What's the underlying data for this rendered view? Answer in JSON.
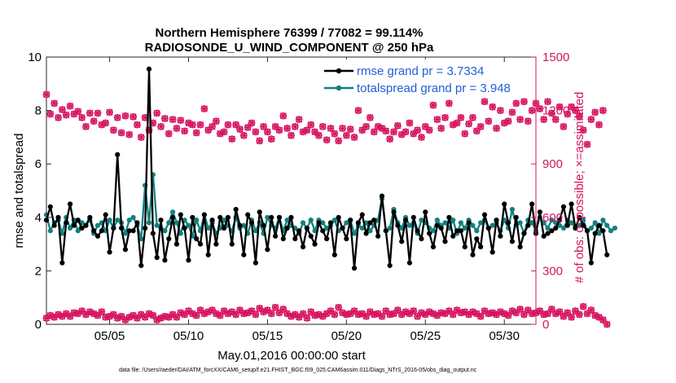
{
  "colors": {
    "rmse": "#000000",
    "spread": "#118080",
    "obs": "#d6135f",
    "legend_text": "#1f5fd6",
    "axis_left": "#000000",
    "axis_right": "#d6135f"
  },
  "chart_data": {
    "type": "line",
    "title": "Northern Hemisphere 76399 / 77082 = 99.114%",
    "subtitle": "RADIOSONDE_U_WIND_COMPONENT @ 250 hPa",
    "xlabel": "May.01,2016 00:00:00 start",
    "ylabel_left": "rmse and totalspread",
    "ylabel_right": "# of obs: o=possible; ×=assimilated",
    "footer": "data file: /Users/raeder/DAI/ATM_forcXX/CAM6_setup/f.e21.FHIST_BGC.f09_025.CAM6assim.011/Diags_NTrS_2016-05/obs_diag_output.nc",
    "xlim": [
      1,
      32
    ],
    "ylim_left": [
      0,
      10
    ],
    "ylim_right": [
      0,
      1500
    ],
    "x_ticks": [
      5,
      10,
      15,
      20,
      25,
      30
    ],
    "x_tick_labels": [
      "05/05",
      "05/10",
      "05/15",
      "05/20",
      "05/25",
      "05/30"
    ],
    "y_left_ticks": [
      "0",
      "2",
      "4",
      "6",
      "8",
      "10"
    ],
    "y_right_ticks": [
      "0",
      "300",
      "600",
      "900",
      "1200",
      "1500"
    ],
    "grid": false,
    "legend_position": "top-right",
    "x_start": 1.0,
    "x_step": 0.25,
    "series": [
      {
        "name": "rmse grand pr = 3.7334",
        "axis": "left",
        "values": [
          3.9,
          4.4,
          3.7,
          4.0,
          2.3,
          3.8,
          4.5,
          3.7,
          3.9,
          3.6,
          3.7,
          4.0,
          3.5,
          3.3,
          3.5,
          4.1,
          2.7,
          3.6,
          6.35,
          3.6,
          2.8,
          3.5,
          3.5,
          3.8,
          2.2,
          3.6,
          9.55,
          3.4,
          2.5,
          3.9,
          2.4,
          3.2,
          4.0,
          3.0,
          4.1,
          3.6,
          2.4,
          4.0,
          3.2,
          3.0,
          4.1,
          2.6,
          3.9,
          3.0,
          4.0,
          3.6,
          4.0,
          3.0,
          4.3,
          3.7,
          2.6,
          4.1,
          3.8,
          2.3,
          4.2,
          3.7,
          2.8,
          4.0,
          3.3,
          4.0,
          3.2,
          3.6,
          4.0,
          3.2,
          3.5,
          2.9,
          3.6,
          3.3,
          3.0,
          3.8,
          3.5,
          3.2,
          3.8,
          2.6,
          4.0,
          3.6,
          3.2,
          3.9,
          2.1,
          3.8,
          4.1,
          3.4,
          3.8,
          3.9,
          3.3,
          4.8,
          3.5,
          2.2,
          4.2,
          3.7,
          3.1,
          3.9,
          2.3,
          4.0,
          3.5,
          3.2,
          4.2,
          3.4,
          2.9,
          3.7,
          3.6,
          3.1,
          4.0,
          3.3,
          3.5,
          3.5,
          2.9,
          3.8,
          2.6,
          3.2,
          2.9,
          4.1,
          3.6,
          2.7,
          3.9,
          3.3,
          4.5,
          3.8,
          3.1,
          4.0,
          2.9,
          3.4,
          3.7,
          4.5,
          3.4,
          4.2,
          3.3,
          3.4,
          3.5,
          3.6,
          3.9,
          4.4,
          3.7,
          4.5,
          3.6,
          4.0,
          3.7,
          3.5,
          2.3,
          3.4,
          3.7,
          3.5,
          2.6
        ]
      },
      {
        "name": "totalspread grand pr = 3.948",
        "axis": "left",
        "values": [
          4.1,
          3.5,
          3.8,
          3.9,
          3.4,
          4.0,
          3.6,
          3.9,
          3.5,
          3.8,
          3.7,
          3.9,
          3.4,
          3.7,
          3.8,
          3.5,
          3.9,
          3.6,
          3.9,
          3.8,
          3.4,
          3.9,
          4.0,
          3.7,
          3.2,
          5.2,
          3.8,
          5.6,
          3.7,
          3.6,
          3.5,
          3.8,
          4.2,
          3.8,
          3.4,
          3.9,
          3.7,
          3.3,
          3.9,
          3.5,
          4.1,
          3.6,
          3.8,
          3.4,
          3.6,
          3.9,
          3.7,
          3.5,
          4.0,
          3.6,
          3.7,
          3.4,
          3.9,
          3.5,
          3.8,
          3.4,
          4.0,
          3.7,
          3.6,
          4.0,
          3.5,
          3.9,
          3.7,
          3.6,
          3.4,
          3.8,
          3.6,
          3.9,
          3.5,
          3.9,
          3.8,
          3.6,
          3.7,
          3.9,
          3.5,
          3.6,
          3.8,
          3.9,
          3.4,
          3.7,
          3.6,
          3.8,
          3.5,
          3.7,
          3.9,
          4.7,
          3.5,
          3.6,
          4.3,
          3.8,
          3.6,
          4.0,
          3.7,
          3.8,
          3.4,
          3.9,
          3.8,
          3.6,
          3.5,
          3.9,
          3.7,
          3.8,
          3.6,
          3.9,
          3.4,
          3.8,
          3.6,
          3.9,
          3.7,
          3.5,
          3.8,
          3.9,
          3.6,
          3.7,
          3.8,
          3.5,
          3.9,
          3.6,
          4.3,
          3.7,
          3.8,
          3.4,
          3.9,
          3.8,
          3.5,
          4.0,
          3.8,
          3.6,
          3.9,
          3.8,
          3.7,
          3.6,
          3.9,
          3.8,
          3.6,
          3.7,
          3.9,
          3.5,
          3.6,
          3.8,
          3.4,
          3.9,
          3.7,
          3.5,
          3.6
        ]
      },
      {
        "name": "possible",
        "axis": "right",
        "marker": "o",
        "values": [
          1290,
          1180,
          1240,
          1160,
          1205,
          1175,
          1225,
          1180,
          1195,
          1160,
          1110,
          1185,
          1140,
          1185,
          1120,
          1130,
          1190,
          1090,
          1160,
          1075,
          1170,
          1065,
          1165,
          1120,
          1050,
          1160,
          1090,
          1130,
          1185,
          1110,
          1155,
          1070,
          1150,
          1100,
          1145,
          1085,
          1130,
          1120,
          1075,
          1120,
          1210,
          1090,
          1110,
          1140,
          1070,
          1080,
          1120,
          1040,
          1120,
          1095,
          1060,
          1105,
          1130,
          1080,
          1030,
          1110,
          1080,
          1040,
          1110,
          1090,
          1170,
          1100,
          1060,
          1110,
          1150,
          1080,
          1090,
          1120,
          1080,
          1060,
          1110,
          1035,
          1100,
          1070,
          1030,
          1100,
          1060,
          1095,
          1050,
          1200,
          1090,
          1110,
          1160,
          1080,
          1110,
          1100,
          1085,
          1040,
          1080,
          1115,
          1065,
          1080,
          1130,
          1070,
          1090,
          1050,
          1110,
          1090,
          1230,
          1150,
          1100,
          1160,
          1240,
          1120,
          1130,
          1160,
          1070,
          1125,
          1160,
          1085,
          1110,
          1250,
          1140,
          1220,
          1100,
          1200,
          1130,
          1140,
          1190,
          1240,
          1150,
          1250,
          1140,
          1200,
          1240,
          1210,
          1150,
          1250,
          1185,
          1150,
          1220,
          1110,
          1180,
          1220,
          1200,
          1170,
          1090,
          1010,
          1150,
          1190,
          1120,
          1200
        ]
      },
      {
        "name": "assimilated",
        "axis": "right",
        "marker": "x",
        "values": [
          35,
          50,
          40,
          55,
          45,
          60,
          45,
          65,
          60,
          75,
          55,
          70,
          60,
          50,
          70,
          40,
          45,
          55,
          35,
          45,
          25,
          40,
          50,
          35,
          55,
          40,
          60,
          50,
          25,
          35,
          45,
          40,
          55,
          40,
          65,
          55,
          75,
          60,
          50,
          80,
          60,
          70,
          80,
          60,
          50,
          75,
          60,
          70,
          55,
          80,
          60,
          65,
          75,
          55,
          90,
          70,
          80,
          60,
          95,
          65,
          85,
          60,
          45,
          55,
          40,
          60,
          35,
          70,
          50,
          55,
          45,
          60,
          75,
          55,
          95,
          65,
          55,
          60,
          75,
          55,
          60,
          45,
          70,
          55,
          60,
          45,
          75,
          55,
          60,
          80,
          55,
          70,
          60,
          75,
          45,
          65,
          55,
          70,
          60,
          50,
          65,
          60,
          75,
          55,
          80,
          65,
          70,
          55,
          70,
          60,
          45,
          75,
          60,
          65,
          55,
          70,
          60,
          50,
          75,
          65,
          85,
          55,
          80,
          60,
          65,
          75,
          55,
          60,
          85,
          60,
          70,
          45,
          65,
          40,
          75,
          55,
          100,
          60,
          80,
          50,
          40,
          25,
          0
        ]
      }
    ]
  }
}
